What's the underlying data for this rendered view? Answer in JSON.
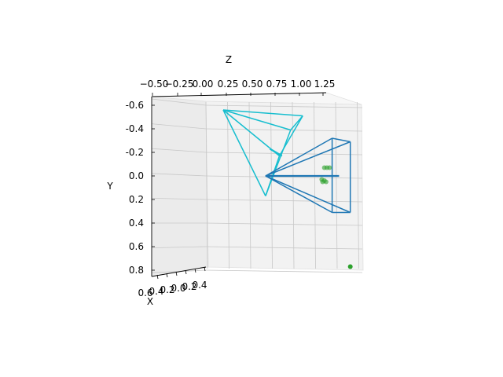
{
  "chart_data": {
    "type": "3d-scatter-wireframe",
    "axes": {
      "x": {
        "label": "X",
        "ticks": [
          "0.6",
          "0.4",
          "0.2",
          "0.0",
          "0.2",
          "0.4"
        ]
      },
      "y": {
        "label": "Y",
        "ticks": [
          "-0.6",
          "-0.4",
          "-0.2",
          "0.0",
          "0.2",
          "0.4",
          "0.6",
          "0.8"
        ],
        "ylim": [
          -0.6,
          0.8
        ]
      },
      "z": {
        "label": "Z",
        "ticks": [
          "−0.50",
          "−0.25",
          "0.00",
          "0.25",
          "0.50",
          "0.75",
          "1.00",
          "1.25"
        ],
        "zlim": [
          -0.5,
          1.25
        ]
      }
    },
    "series": [
      {
        "kind": "camera-frustum",
        "color": "#17becf",
        "apex": {
          "z": -0.3,
          "y": -0.56
        },
        "corners": [
          {
            "z": 0.62,
            "y": -0.51
          },
          {
            "z": 0.48,
            "y": -0.39
          },
          {
            "z": 0.35,
            "y": -0.17
          },
          {
            "z": 0.19,
            "y": 0.17
          }
        ],
        "arrow": {
          "from": {
            "z": 0.24,
            "y": -0.23
          },
          "to": {
            "z": 0.38,
            "y": -0.17
          }
        }
      },
      {
        "kind": "camera-frustum",
        "color": "#1f77b4",
        "apex": {
          "z": 0.19,
          "y": 0.0
        },
        "corners": [
          {
            "z": 0.96,
            "y": -0.32
          },
          {
            "z": 1.17,
            "y": -0.29
          },
          {
            "z": 0.96,
            "y": 0.31
          },
          {
            "z": 1.17,
            "y": 0.31
          }
        ],
        "arrow": {
          "from": {
            "z": 0.19,
            "y": 0.0
          },
          "to": {
            "z": 1.04,
            "y": 0.0
          }
        }
      }
    ],
    "points": {
      "color": "#2ca02c",
      "values": [
        {
          "z": 0.87,
          "y": -0.07
        },
        {
          "z": 0.9,
          "y": -0.07
        },
        {
          "z": 0.93,
          "y": -0.07
        },
        {
          "z": 0.84,
          "y": 0.03
        },
        {
          "z": 0.87,
          "y": 0.04
        },
        {
          "z": 0.89,
          "y": 0.05
        },
        {
          "z": 0.85,
          "y": 0.05
        },
        {
          "z": 1.17,
          "y": 0.77
        }
      ]
    }
  }
}
